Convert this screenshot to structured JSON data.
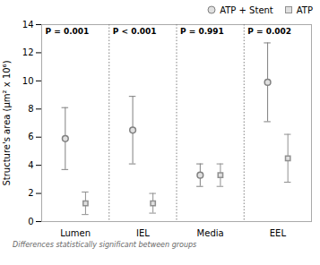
{
  "chart_data": {
    "type": "errorbar",
    "categories": [
      "Lumen",
      "IEL",
      "Media",
      "EEL"
    ],
    "series": [
      {
        "name": "ATP + Stent",
        "color": "#808080",
        "marker": "circle",
        "values": [
          5.9,
          6.5,
          3.3,
          9.9
        ],
        "err_up": [
          2.2,
          2.4,
          0.8,
          2.8
        ],
        "err_dn": [
          2.2,
          2.4,
          0.8,
          2.8
        ]
      },
      {
        "name": "ATP",
        "color": "#909090",
        "marker": "square",
        "values": [
          1.3,
          1.3,
          3.3,
          4.5
        ],
        "err_up": [
          0.8,
          0.7,
          0.8,
          1.7
        ],
        "err_dn": [
          0.8,
          0.7,
          0.8,
          1.7
        ]
      }
    ],
    "annotations": [
      "P = 0.001",
      "P < 0.001",
      "P = 0.991",
      "P = 0.002"
    ],
    "ylabel": "Structure's area (μm² x 10⁶)",
    "caption": "Differences statistically significant between groups",
    "ylim": [
      0,
      14
    ],
    "yticks": [
      0,
      2,
      4,
      6,
      8,
      10,
      12,
      14
    ],
    "grid": false,
    "legend": "upper right"
  }
}
